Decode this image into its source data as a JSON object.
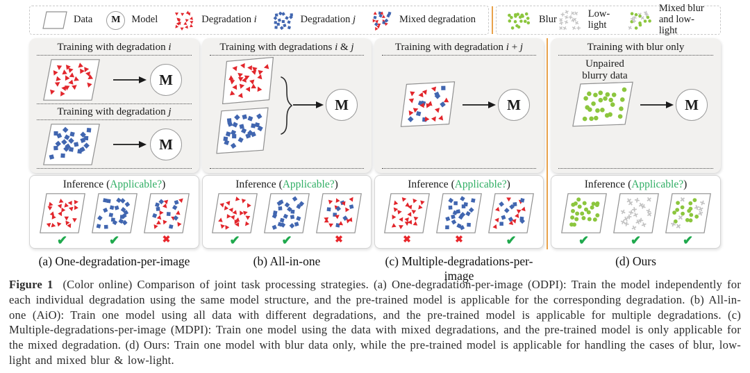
{
  "colors": {
    "red": "#e2262c",
    "blue": "#4166b0",
    "green": "#8cc63e",
    "gray": "#c2c2c2",
    "check_green": "#1fa94d",
    "cross_red": "#e8262b",
    "applicable_green": "#2fae64",
    "divider_orange": "#e9a24b"
  },
  "model_letter": "M",
  "marks": {
    "check": "✔",
    "cross": "✖"
  },
  "legend": {
    "left": [
      {
        "label": "Data",
        "icon": "data-parallelogram"
      },
      {
        "label": "Model",
        "icon": "model-circle"
      },
      {
        "label": "Degradation *i*",
        "icon": "scatter",
        "kind": "red"
      },
      {
        "label": "Degradation *j*",
        "icon": "scatter",
        "kind": "blue"
      },
      {
        "label": "Mixed degradation",
        "icon": "scatter",
        "kind": "red+blue"
      }
    ],
    "right": [
      {
        "label": "Blur",
        "icon": "scatter",
        "kind": "green"
      },
      {
        "label": "Low-light",
        "icon": "scatter",
        "kind": "gray"
      },
      {
        "label": "Mixed blur\nand low-light",
        "icon": "scatter",
        "kind": "green+gray"
      }
    ]
  },
  "inference_title": {
    "prefix": "Inference (",
    "highlight": "Applicable?",
    "suffix": ")"
  },
  "panels": [
    {
      "caption": "(a) One-degradation-per-image",
      "training_titles": [
        "Training with degradation *i*",
        "Training with degradation *j*"
      ],
      "training_data": [
        "red",
        "blue"
      ],
      "inference_cases": [
        {
          "kind": "red",
          "mark": "check"
        },
        {
          "kind": "blue",
          "mark": "check"
        },
        {
          "kind": "red+blue",
          "mark": "cross"
        }
      ]
    },
    {
      "caption": "(b) All-in-one",
      "training_titles": [
        "Training with degradations *i* & *j*"
      ],
      "training_data": [
        "red",
        "blue"
      ],
      "inference_cases": [
        {
          "kind": "red",
          "mark": "check"
        },
        {
          "kind": "blue",
          "mark": "check"
        },
        {
          "kind": "red+blue",
          "mark": "cross"
        }
      ]
    },
    {
      "caption": "(c) Multiple-degradations-per-image",
      "training_titles": [
        "Training with degradation *i* + *j*"
      ],
      "training_data": [
        "red+blue"
      ],
      "inference_cases": [
        {
          "kind": "red",
          "mark": "cross"
        },
        {
          "kind": "blue",
          "mark": "cross"
        },
        {
          "kind": "red+blue",
          "mark": "check"
        }
      ]
    },
    {
      "caption": "(d) Ours",
      "training_titles": [
        "Training with blur only"
      ],
      "training_note": "Unpaired\nblurry data",
      "training_data": [
        "green"
      ],
      "inference_cases": [
        {
          "kind": "green",
          "mark": "check"
        },
        {
          "kind": "gray",
          "mark": "check"
        },
        {
          "kind": "green+gray",
          "mark": "check"
        }
      ]
    }
  ],
  "figure_caption": {
    "label": "Figure 1",
    "text": "(Color online) Comparison of joint task processing strategies. (a) One-degradation-per-image (ODPI): Train the model independently for each individual degradation using the same model structure, and the pre-trained model is applicable for the corresponding degradation. (b) All-in-one (AiO): Train one model using all data with different degradations, and the pre-trained model is applicable for multiple degradations. (c) Multiple-degradations-per-image (MDPI): Train one model using the data with mixed degradations, and the pre-trained model is only applicable for the mixed degradation. (d) Ours: Train one model with blur data only, while the pre-trained model is applicable for handling the cases of blur, low-light and mixed blur & low-light."
  }
}
